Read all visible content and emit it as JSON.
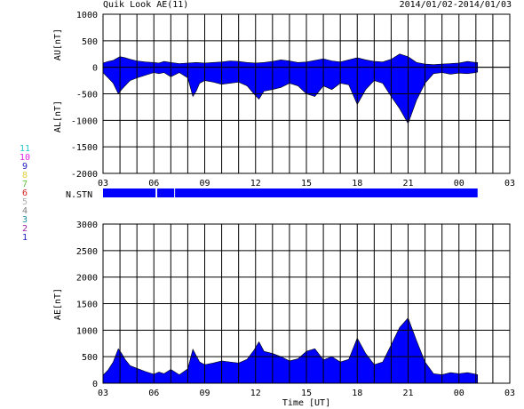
{
  "header": {
    "title": "Quik Look AE(11)",
    "date_range": "2014/01/02-2014/01/03"
  },
  "station_legend": [
    {
      "label": "11",
      "color": "#22c8c8"
    },
    {
      "label": "10",
      "color": "#e020e0"
    },
    {
      "label": "9",
      "color": "#2020c0"
    },
    {
      "label": "8",
      "color": "#e0d040"
    },
    {
      "label": "7",
      "color": "#60c040"
    },
    {
      "label": "6",
      "color": "#d02020"
    },
    {
      "label": "5",
      "color": "#b0b0b0"
    },
    {
      "label": "4",
      "color": "#808080"
    },
    {
      "label": "3",
      "color": "#2090a0"
    },
    {
      "label": "2",
      "color": "#a020a0"
    },
    {
      "label": "1",
      "color": "#2020c0"
    }
  ],
  "colors": {
    "fill": "#0000ff",
    "grid": "#000000"
  },
  "chart_data": [
    {
      "type": "area",
      "ylabel_top": "AU[nT]",
      "ylabel_bottom": "AL[nT]",
      "ylim": [
        -2000,
        1000
      ],
      "yticks": [
        "1000",
        "500",
        "0",
        "-500",
        "-1000",
        "-1500",
        "-2000"
      ],
      "yvals": [
        1000,
        500,
        0,
        -500,
        -1000,
        -1500,
        -2000
      ],
      "xlim": [
        0,
        24
      ],
      "xticks": [
        "03",
        "06",
        "09",
        "12",
        "15",
        "18",
        "21",
        "00",
        "03"
      ],
      "grid": true,
      "data_end": 22.1,
      "series": [
        {
          "name": "AU",
          "x": [
            0,
            0.3,
            0.6,
            1.0,
            1.3,
            1.6,
            2.0,
            2.5,
            3.0,
            3.3,
            3.6,
            4.0,
            4.5,
            5.0,
            5.5,
            6.0,
            6.5,
            7.0,
            7.5,
            8.0,
            8.5,
            9.0,
            9.5,
            10.0,
            10.5,
            11.0,
            11.5,
            12.0,
            12.5,
            13.0,
            13.5,
            14.0,
            14.5,
            15.0,
            15.5,
            16.0,
            16.5,
            17.0,
            17.5,
            18.0,
            18.5,
            19.0,
            19.5,
            20.0,
            20.5,
            21.0,
            21.5,
            22.0,
            22.1
          ],
          "y": [
            80,
            110,
            130,
            200,
            180,
            150,
            120,
            100,
            90,
            80,
            110,
            90,
            70,
            80,
            90,
            80,
            90,
            100,
            120,
            110,
            90,
            80,
            90,
            110,
            140,
            120,
            90,
            100,
            130,
            160,
            120,
            100,
            140,
            180,
            140,
            110,
            100,
            150,
            250,
            200,
            90,
            60,
            50,
            60,
            70,
            80,
            110,
            90,
            90
          ]
        },
        {
          "name": "AL",
          "x": [
            0,
            0.3,
            0.6,
            0.9,
            1.1,
            1.3,
            1.6,
            2.0,
            2.5,
            3.0,
            3.3,
            3.6,
            4.0,
            4.5,
            5.0,
            5.3,
            5.5,
            5.7,
            6.0,
            6.5,
            7.0,
            7.5,
            8.0,
            8.5,
            8.9,
            9.2,
            9.5,
            10.0,
            10.5,
            11.0,
            11.5,
            12.0,
            12.5,
            13.0,
            13.5,
            14.0,
            14.5,
            15.0,
            15.5,
            16.0,
            16.5,
            17.0,
            17.5,
            18.0,
            18.5,
            19.0,
            19.5,
            20.0,
            20.5,
            21.0,
            21.5,
            22.0,
            22.1
          ],
          "y": [
            -100,
            -200,
            -300,
            -500,
            -420,
            -350,
            -250,
            -200,
            -150,
            -100,
            -120,
            -100,
            -180,
            -100,
            -200,
            -550,
            -450,
            -300,
            -250,
            -280,
            -320,
            -300,
            -280,
            -350,
            -500,
            -600,
            -450,
            -420,
            -380,
            -300,
            -350,
            -500,
            -550,
            -350,
            -420,
            -300,
            -330,
            -700,
            -420,
            -250,
            -300,
            -550,
            -780,
            -1060,
            -620,
            -300,
            -120,
            -100,
            -130,
            -110,
            -120,
            -100,
            -90
          ]
        }
      ]
    },
    {
      "type": "area",
      "ylabel": "AE[nT]",
      "ylim": [
        0,
        3000
      ],
      "yticks": [
        "3000",
        "2500",
        "2000",
        "1500",
        "1000",
        "500",
        "0"
      ],
      "yvals": [
        3000,
        2500,
        2000,
        1500,
        1000,
        500,
        0
      ],
      "xlim": [
        0,
        24
      ],
      "xticks": [
        "03",
        "06",
        "09",
        "12",
        "15",
        "18",
        "21",
        "00",
        "03"
      ],
      "xlabel": "Time [UT]",
      "grid": true,
      "series": [
        {
          "name": "AE",
          "x": [
            0,
            0.3,
            0.6,
            0.9,
            1.1,
            1.3,
            1.6,
            2.0,
            2.5,
            3.0,
            3.3,
            3.6,
            4.0,
            4.5,
            5.0,
            5.3,
            5.5,
            5.7,
            6.0,
            6.5,
            7.0,
            7.5,
            8.0,
            8.5,
            8.9,
            9.2,
            9.5,
            10.0,
            10.5,
            11.0,
            11.5,
            12.0,
            12.5,
            13.0,
            13.5,
            14.0,
            14.5,
            15.0,
            15.5,
            16.0,
            16.5,
            17.0,
            17.5,
            18.0,
            18.5,
            19.0,
            19.5,
            20.0,
            20.5,
            21.0,
            21.5,
            22.0,
            22.1
          ],
          "y": [
            150,
            250,
            400,
            650,
            560,
            450,
            330,
            280,
            220,
            170,
            210,
            180,
            260,
            160,
            270,
            640,
            520,
            400,
            350,
            380,
            420,
            400,
            380,
            450,
            620,
            780,
            600,
            560,
            500,
            420,
            460,
            600,
            650,
            440,
            500,
            400,
            450,
            850,
            560,
            350,
            400,
            720,
            1050,
            1230,
            800,
            400,
            180,
            160,
            200,
            180,
            200,
            170,
            160
          ]
        }
      ]
    }
  ],
  "stn_bar": {
    "label": "N.STN",
    "segments": [
      [
        0,
        3.1
      ],
      [
        3.2,
        4.2
      ],
      [
        4.25,
        22.1
      ]
    ]
  }
}
